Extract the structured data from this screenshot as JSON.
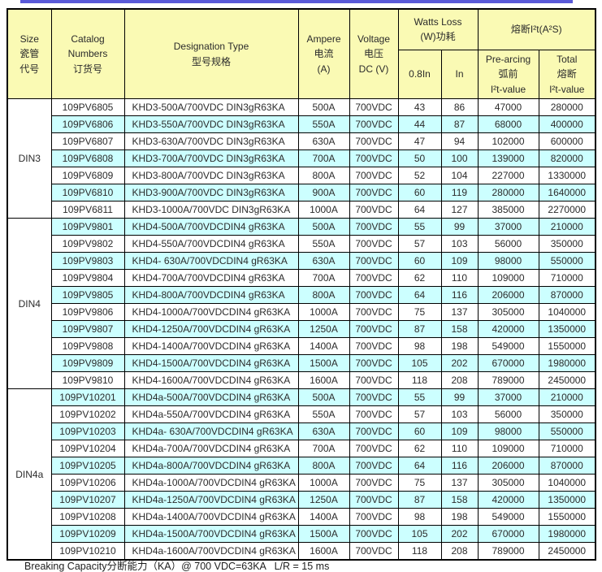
{
  "colors": {
    "top_rule": "#5A5AD8",
    "header_yellow": "#FAFAB4",
    "stripe_cyan": "#CCFFFF",
    "row_white": "#FFFFFF",
    "border": "#000000",
    "text": "#2B2B2B"
  },
  "header": {
    "size": "Size\n瓷管\n代号",
    "catalog": "Catalog\nNumbers\n订货号",
    "designation": "Designation Type\n型号规格",
    "ampere": "Ampere\n电流\n(A)",
    "voltage": "Voltage\n电压\nDC (V)",
    "watts_loss_group": "Watts Loss\n(W)功耗",
    "watts_08in": "0.8In",
    "watts_in": "In",
    "i2t_group": "熔断I²t(A²S)",
    "prearcing": "Pre-arcing\n弧前\nI²t-value",
    "total": "Total\n熔断\nI²t-value"
  },
  "groups": [
    {
      "size": "DIN3",
      "rows": [
        {
          "catalog": "109PV6805",
          "designation": "KHD3-500A/700VDC DIN3gR63KA",
          "ampere": "500A",
          "voltage": "700VDC",
          "watts_08in": "43",
          "watts_in": "86",
          "prearcing_i2t": "47000",
          "total_i2t": "280000"
        },
        {
          "catalog": "109PV6806",
          "designation": "KHD3-550A/700VDC DIN3gR63KA",
          "ampere": "550A",
          "voltage": "700VDC",
          "watts_08in": "44",
          "watts_in": "87",
          "prearcing_i2t": "68000",
          "total_i2t": "400000"
        },
        {
          "catalog": "109PV6807",
          "designation": "KHD3-630A/700VDC DIN3gR63KA",
          "ampere": "630A",
          "voltage": "700VDC",
          "watts_08in": "47",
          "watts_in": "94",
          "prearcing_i2t": "102000",
          "total_i2t": "600000"
        },
        {
          "catalog": "109PV6808",
          "designation": "KHD3-700A/700VDC DIN3gR63KA",
          "ampere": "700A",
          "voltage": "700VDC",
          "watts_08in": "50",
          "watts_in": "100",
          "prearcing_i2t": "139000",
          "total_i2t": "820000"
        },
        {
          "catalog": "109PV6809",
          "designation": "KHD3-800A/700VDC DIN3gR63KA",
          "ampere": "800A",
          "voltage": "700VDC",
          "watts_08in": "52",
          "watts_in": "104",
          "prearcing_i2t": "227000",
          "total_i2t": "1330000"
        },
        {
          "catalog": "109PV6810",
          "designation": "KHD3-900A/700VDC DIN3gR63KA",
          "ampere": "900A",
          "voltage": "700VDC",
          "watts_08in": "60",
          "watts_in": "119",
          "prearcing_i2t": "280000",
          "total_i2t": "1640000"
        },
        {
          "catalog": "109PV6811",
          "designation": "KHD3-1000A/700VDC DIN3gR63KA",
          "ampere": "1000A",
          "voltage": "700VDC",
          "watts_08in": "64",
          "watts_in": "127",
          "prearcing_i2t": "385000",
          "total_i2t": "2270000"
        }
      ]
    },
    {
      "size": "DIN4",
      "rows": [
        {
          "catalog": "109PV9801",
          "designation": "KHD4-500A/700VDCDIN4 gR63KA",
          "ampere": "500A",
          "voltage": "700VDC",
          "watts_08in": "55",
          "watts_in": "99",
          "prearcing_i2t": "37000",
          "total_i2t": "210000"
        },
        {
          "catalog": "109PV9802",
          "designation": "KHD4-550A/700VDCDIN4 gR63KA",
          "ampere": "550A",
          "voltage": "700VDC",
          "watts_08in": "57",
          "watts_in": "103",
          "prearcing_i2t": "56000",
          "total_i2t": "350000"
        },
        {
          "catalog": "109PV9803",
          "designation": "KHD4- 630A/700VDCDIN4 gR63KA",
          "ampere": "630A",
          "voltage": "700VDC",
          "watts_08in": "60",
          "watts_in": "109",
          "prearcing_i2t": "98000",
          "total_i2t": "550000"
        },
        {
          "catalog": "109PV9804",
          "designation": "KHD4-700A/700VDCDIN4 gR63KA",
          "ampere": "700A",
          "voltage": "700VDC",
          "watts_08in": "62",
          "watts_in": "110",
          "prearcing_i2t": "109000",
          "total_i2t": "710000"
        },
        {
          "catalog": "109PV9805",
          "designation": "KHD4-800A/700VDCDIN4 gR63KA",
          "ampere": "800A",
          "voltage": "700VDC",
          "watts_08in": "64",
          "watts_in": "116",
          "prearcing_i2t": "206000",
          "total_i2t": "870000"
        },
        {
          "catalog": "109PV9806",
          "designation": "KHD4-1000A/700VDCDIN4 gR63KA",
          "ampere": "1000A",
          "voltage": "700VDC",
          "watts_08in": "75",
          "watts_in": "137",
          "prearcing_i2t": "305000",
          "total_i2t": "1040000"
        },
        {
          "catalog": "109PV9807",
          "designation": "KHD4-1250A/700VDCDIN4 gR63KA",
          "ampere": "1250A",
          "voltage": "700VDC",
          "watts_08in": "87",
          "watts_in": "158",
          "prearcing_i2t": "420000",
          "total_i2t": "1350000"
        },
        {
          "catalog": "109PV9808",
          "designation": "KHD4-1400A/700VDCDIN4 gR63KA",
          "ampere": "1400A",
          "voltage": "700VDC",
          "watts_08in": "98",
          "watts_in": "198",
          "prearcing_i2t": "549000",
          "total_i2t": "1550000"
        },
        {
          "catalog": "109PV9809",
          "designation": "KHD4-1500A/700VDCDIN4 gR63KA",
          "ampere": "1500A",
          "voltage": "700VDC",
          "watts_08in": "105",
          "watts_in": "202",
          "prearcing_i2t": "670000",
          "total_i2t": "1980000"
        },
        {
          "catalog": "109PV9810",
          "designation": "KHD4-1600A/700VDCDIN4 gR63KA",
          "ampere": "1600A",
          "voltage": "700VDC",
          "watts_08in": "118",
          "watts_in": "208",
          "prearcing_i2t": "789000",
          "total_i2t": "2450000"
        }
      ]
    },
    {
      "size": "DIN4a",
      "rows": [
        {
          "catalog": "109PV10201",
          "designation": "KHD4a-500A/700VDCDIN4 gR63KA",
          "ampere": "500A",
          "voltage": "700VDC",
          "watts_08in": "55",
          "watts_in": "99",
          "prearcing_i2t": "37000",
          "total_i2t": "210000"
        },
        {
          "catalog": "109PV10202",
          "designation": "KHD4a-550A/700VDCDIN4 gR63KA",
          "ampere": "550A",
          "voltage": "700VDC",
          "watts_08in": "57",
          "watts_in": "103",
          "prearcing_i2t": "56000",
          "total_i2t": "350000"
        },
        {
          "catalog": "109PV10203",
          "designation": "KHD4a- 630A/700VDCDIN4 gR63KA",
          "ampere": "630A",
          "voltage": "700VDC",
          "watts_08in": "60",
          "watts_in": "109",
          "prearcing_i2t": "98000",
          "total_i2t": "550000"
        },
        {
          "catalog": "109PV10204",
          "designation": "KHD4a-700A/700VDCDIN4 gR63KA",
          "ampere": "700A",
          "voltage": "700VDC",
          "watts_08in": "62",
          "watts_in": "110",
          "prearcing_i2t": "109000",
          "total_i2t": "710000"
        },
        {
          "catalog": "109PV10205",
          "designation": "KHD4a-800A/700VDCDIN4 gR63KA",
          "ampere": "800A",
          "voltage": "700VDC",
          "watts_08in": "64",
          "watts_in": "116",
          "prearcing_i2t": "206000",
          "total_i2t": "870000"
        },
        {
          "catalog": "109PV10206",
          "designation": "KHD4a-1000A/700VDCDIN4 gR63KA",
          "ampere": "1000A",
          "voltage": "700VDC",
          "watts_08in": "75",
          "watts_in": "137",
          "prearcing_i2t": "305000",
          "total_i2t": "1040000"
        },
        {
          "catalog": "109PV10207",
          "designation": "KHD4a-1250A/700VDCDIN4 gR63KA",
          "ampere": "1250A",
          "voltage": "700VDC",
          "watts_08in": "87",
          "watts_in": "158",
          "prearcing_i2t": "420000",
          "total_i2t": "1350000"
        },
        {
          "catalog": "109PV10208",
          "designation": "KHD4a-1400A/700VDCDIN4 gR63KA",
          "ampere": "1400A",
          "voltage": "700VDC",
          "watts_08in": "98",
          "watts_in": "198",
          "prearcing_i2t": "549000",
          "total_i2t": "1550000"
        },
        {
          "catalog": "109PV10209",
          "designation": "KHD4a-1500A/700VDCDIN4 gR63KA",
          "ampere": "1500A",
          "voltage": "700VDC",
          "watts_08in": "105",
          "watts_in": "202",
          "prearcing_i2t": "670000",
          "total_i2t": "1980000"
        },
        {
          "catalog": "109PV10210",
          "designation": "KHD4a-1600A/700VDCDIN4 gR63KA",
          "ampere": "1600A",
          "voltage": "700VDC",
          "watts_08in": "118",
          "watts_in": "208",
          "prearcing_i2t": "789000",
          "total_i2t": "2450000"
        }
      ]
    }
  ],
  "footer": {
    "note": "Breaking Capacity分断能力（KA）@ 700 VDC=63KA   L/R = 15 ms"
  }
}
